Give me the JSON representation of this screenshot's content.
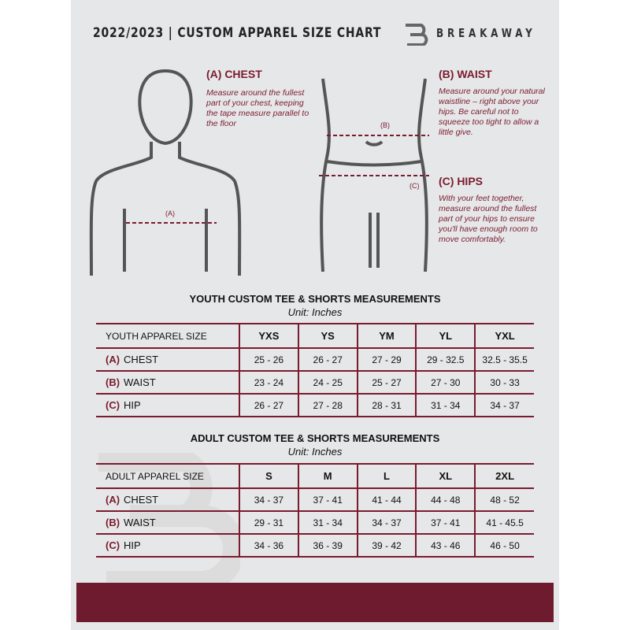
{
  "header": {
    "title": "2022/2023 | CUSTOM APPAREL SIZE CHART",
    "brand": "BREAKAWAY"
  },
  "measures": {
    "chest": {
      "title": "(A) CHEST",
      "desc": "Measure around the fullest part of your chest, keeping the tape measure parallel to the floor",
      "marker": "(A)"
    },
    "waist": {
      "title": "(B) WAIST",
      "desc": "Measure around your natural waistline – right above your hips. Be careful not to squeeze too tight to allow a little give.",
      "marker": "(B)"
    },
    "hips": {
      "title": "(C) HIPS",
      "desc": "With your feet together, measure around the fullest part of your hips to ensure you'll have enough room to move comfortably.",
      "marker": "(C)"
    }
  },
  "youth": {
    "title": "YOUTH CUSTOM TEE & SHORTS MEASUREMENTS",
    "unit": "Unit: Inches",
    "header": [
      "YOUTH APPAREL SIZE",
      "YXS",
      "YS",
      "YM",
      "YL",
      "YXL"
    ],
    "rows": [
      {
        "code": "(A)",
        "name": "CHEST",
        "values": [
          "25 - 26",
          "26 - 27",
          "27 - 29",
          "29 - 32.5",
          "32.5 - 35.5"
        ]
      },
      {
        "code": "(B)",
        "name": "WAIST",
        "values": [
          "23 - 24",
          "24 - 25",
          "25 - 27",
          "27 - 30",
          "30 - 33"
        ]
      },
      {
        "code": "(C)",
        "name": "HIP",
        "values": [
          "26 - 27",
          "27 - 28",
          "28 - 31",
          "31 - 34",
          "34 - 37"
        ]
      }
    ]
  },
  "adult": {
    "title": "ADULT CUSTOM TEE & SHORTS MEASUREMENTS",
    "unit": "Unit: Inches",
    "header": [
      "ADULT APPAREL SIZE",
      "S",
      "M",
      "L",
      "XL",
      "2XL"
    ],
    "rows": [
      {
        "code": "(A)",
        "name": "CHEST",
        "values": [
          "34 - 37",
          "37 - 41",
          "41 - 44",
          "44 - 48",
          "48 - 52"
        ]
      },
      {
        "code": "(B)",
        "name": "WAIST",
        "values": [
          "29 - 31",
          "31 - 34",
          "34 - 37",
          "37 - 41",
          "41 - 45.5"
        ]
      },
      {
        "code": "(C)",
        "name": "HIP",
        "values": [
          "34 - 36",
          "36 - 39",
          "39 - 42",
          "43 - 46",
          "46 - 50"
        ]
      }
    ]
  },
  "colors": {
    "accent": "#6f1b2f",
    "background": "#e6e7e8"
  }
}
